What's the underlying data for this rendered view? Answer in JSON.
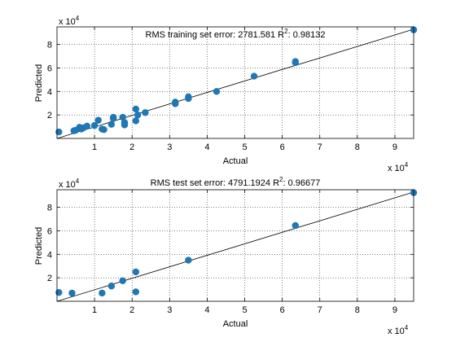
{
  "chart_data": [
    {
      "type": "scatter",
      "title": "RMS training set error: 2781.581  R",
      "title_sup": "2",
      "title_tail": ": 0.98132",
      "xlabel": "Actual",
      "ylabel": "Predicted",
      "xlim": [
        0,
        95000
      ],
      "ylim": [
        0,
        95000
      ],
      "xticks": [
        10000,
        20000,
        30000,
        40000,
        50000,
        60000,
        70000,
        80000,
        90000
      ],
      "xtick_labels": [
        "1",
        "2",
        "3",
        "4",
        "5",
        "6",
        "7",
        "8",
        "9"
      ],
      "yticks": [
        20000,
        40000,
        60000,
        80000
      ],
      "ytick_labels": [
        "2",
        "4",
        "6",
        "8"
      ],
      "x_exponent": "x 10",
      "y_exponent": "x 10",
      "exponent_power": "4",
      "grid": true,
      "marker_color": "#1f77b4",
      "line_color": "#000000",
      "fit_line": [
        [
          0,
          0
        ],
        [
          95000,
          93000
        ]
      ],
      "points": [
        [
          500,
          5500
        ],
        [
          4500,
          6500
        ],
        [
          5000,
          7000
        ],
        [
          6000,
          9500
        ],
        [
          6500,
          8000
        ],
        [
          7000,
          9000
        ],
        [
          8000,
          10500
        ],
        [
          10000,
          11000
        ],
        [
          11000,
          15500
        ],
        [
          12000,
          8000
        ],
        [
          12500,
          7500
        ],
        [
          14500,
          12000
        ],
        [
          15000,
          17000
        ],
        [
          15000,
          18000
        ],
        [
          17500,
          18000
        ],
        [
          18000,
          11500
        ],
        [
          18000,
          13500
        ],
        [
          21000,
          25000
        ],
        [
          21000,
          15000
        ],
        [
          21500,
          20000
        ],
        [
          23500,
          22000
        ],
        [
          31500,
          29500
        ],
        [
          31500,
          31000
        ],
        [
          35000,
          34000
        ],
        [
          35000,
          35500
        ],
        [
          42500,
          40000
        ],
        [
          52500,
          53000
        ],
        [
          63500,
          64500
        ],
        [
          63500,
          65500
        ],
        [
          95000,
          92500
        ]
      ]
    },
    {
      "type": "scatter",
      "title": "RMS test set error: 4791.1924  R",
      "title_sup": "2",
      "title_tail": ": 0.96677",
      "xlabel": "Actual",
      "ylabel": "Predicted",
      "xlim": [
        0,
        95000
      ],
      "ylim": [
        0,
        95000
      ],
      "xticks": [
        10000,
        20000,
        30000,
        40000,
        50000,
        60000,
        70000,
        80000,
        90000
      ],
      "xtick_labels": [
        "1",
        "2",
        "3",
        "4",
        "5",
        "6",
        "7",
        "8",
        "9"
      ],
      "yticks": [
        20000,
        40000,
        60000,
        80000
      ],
      "ytick_labels": [
        "2",
        "4",
        "6",
        "8"
      ],
      "x_exponent": "x 10",
      "y_exponent": "x 10",
      "exponent_power": "4",
      "grid": true,
      "marker_color": "#1f77b4",
      "line_color": "#000000",
      "fit_line": [
        [
          0,
          0
        ],
        [
          95000,
          93000
        ]
      ],
      "points": [
        [
          500,
          7500
        ],
        [
          4000,
          7000
        ],
        [
          12000,
          7000
        ],
        [
          14500,
          13000
        ],
        [
          17500,
          17500
        ],
        [
          21000,
          25000
        ],
        [
          21000,
          8000
        ],
        [
          35000,
          35000
        ],
        [
          63500,
          64500
        ],
        [
          95000,
          92500
        ]
      ]
    }
  ]
}
